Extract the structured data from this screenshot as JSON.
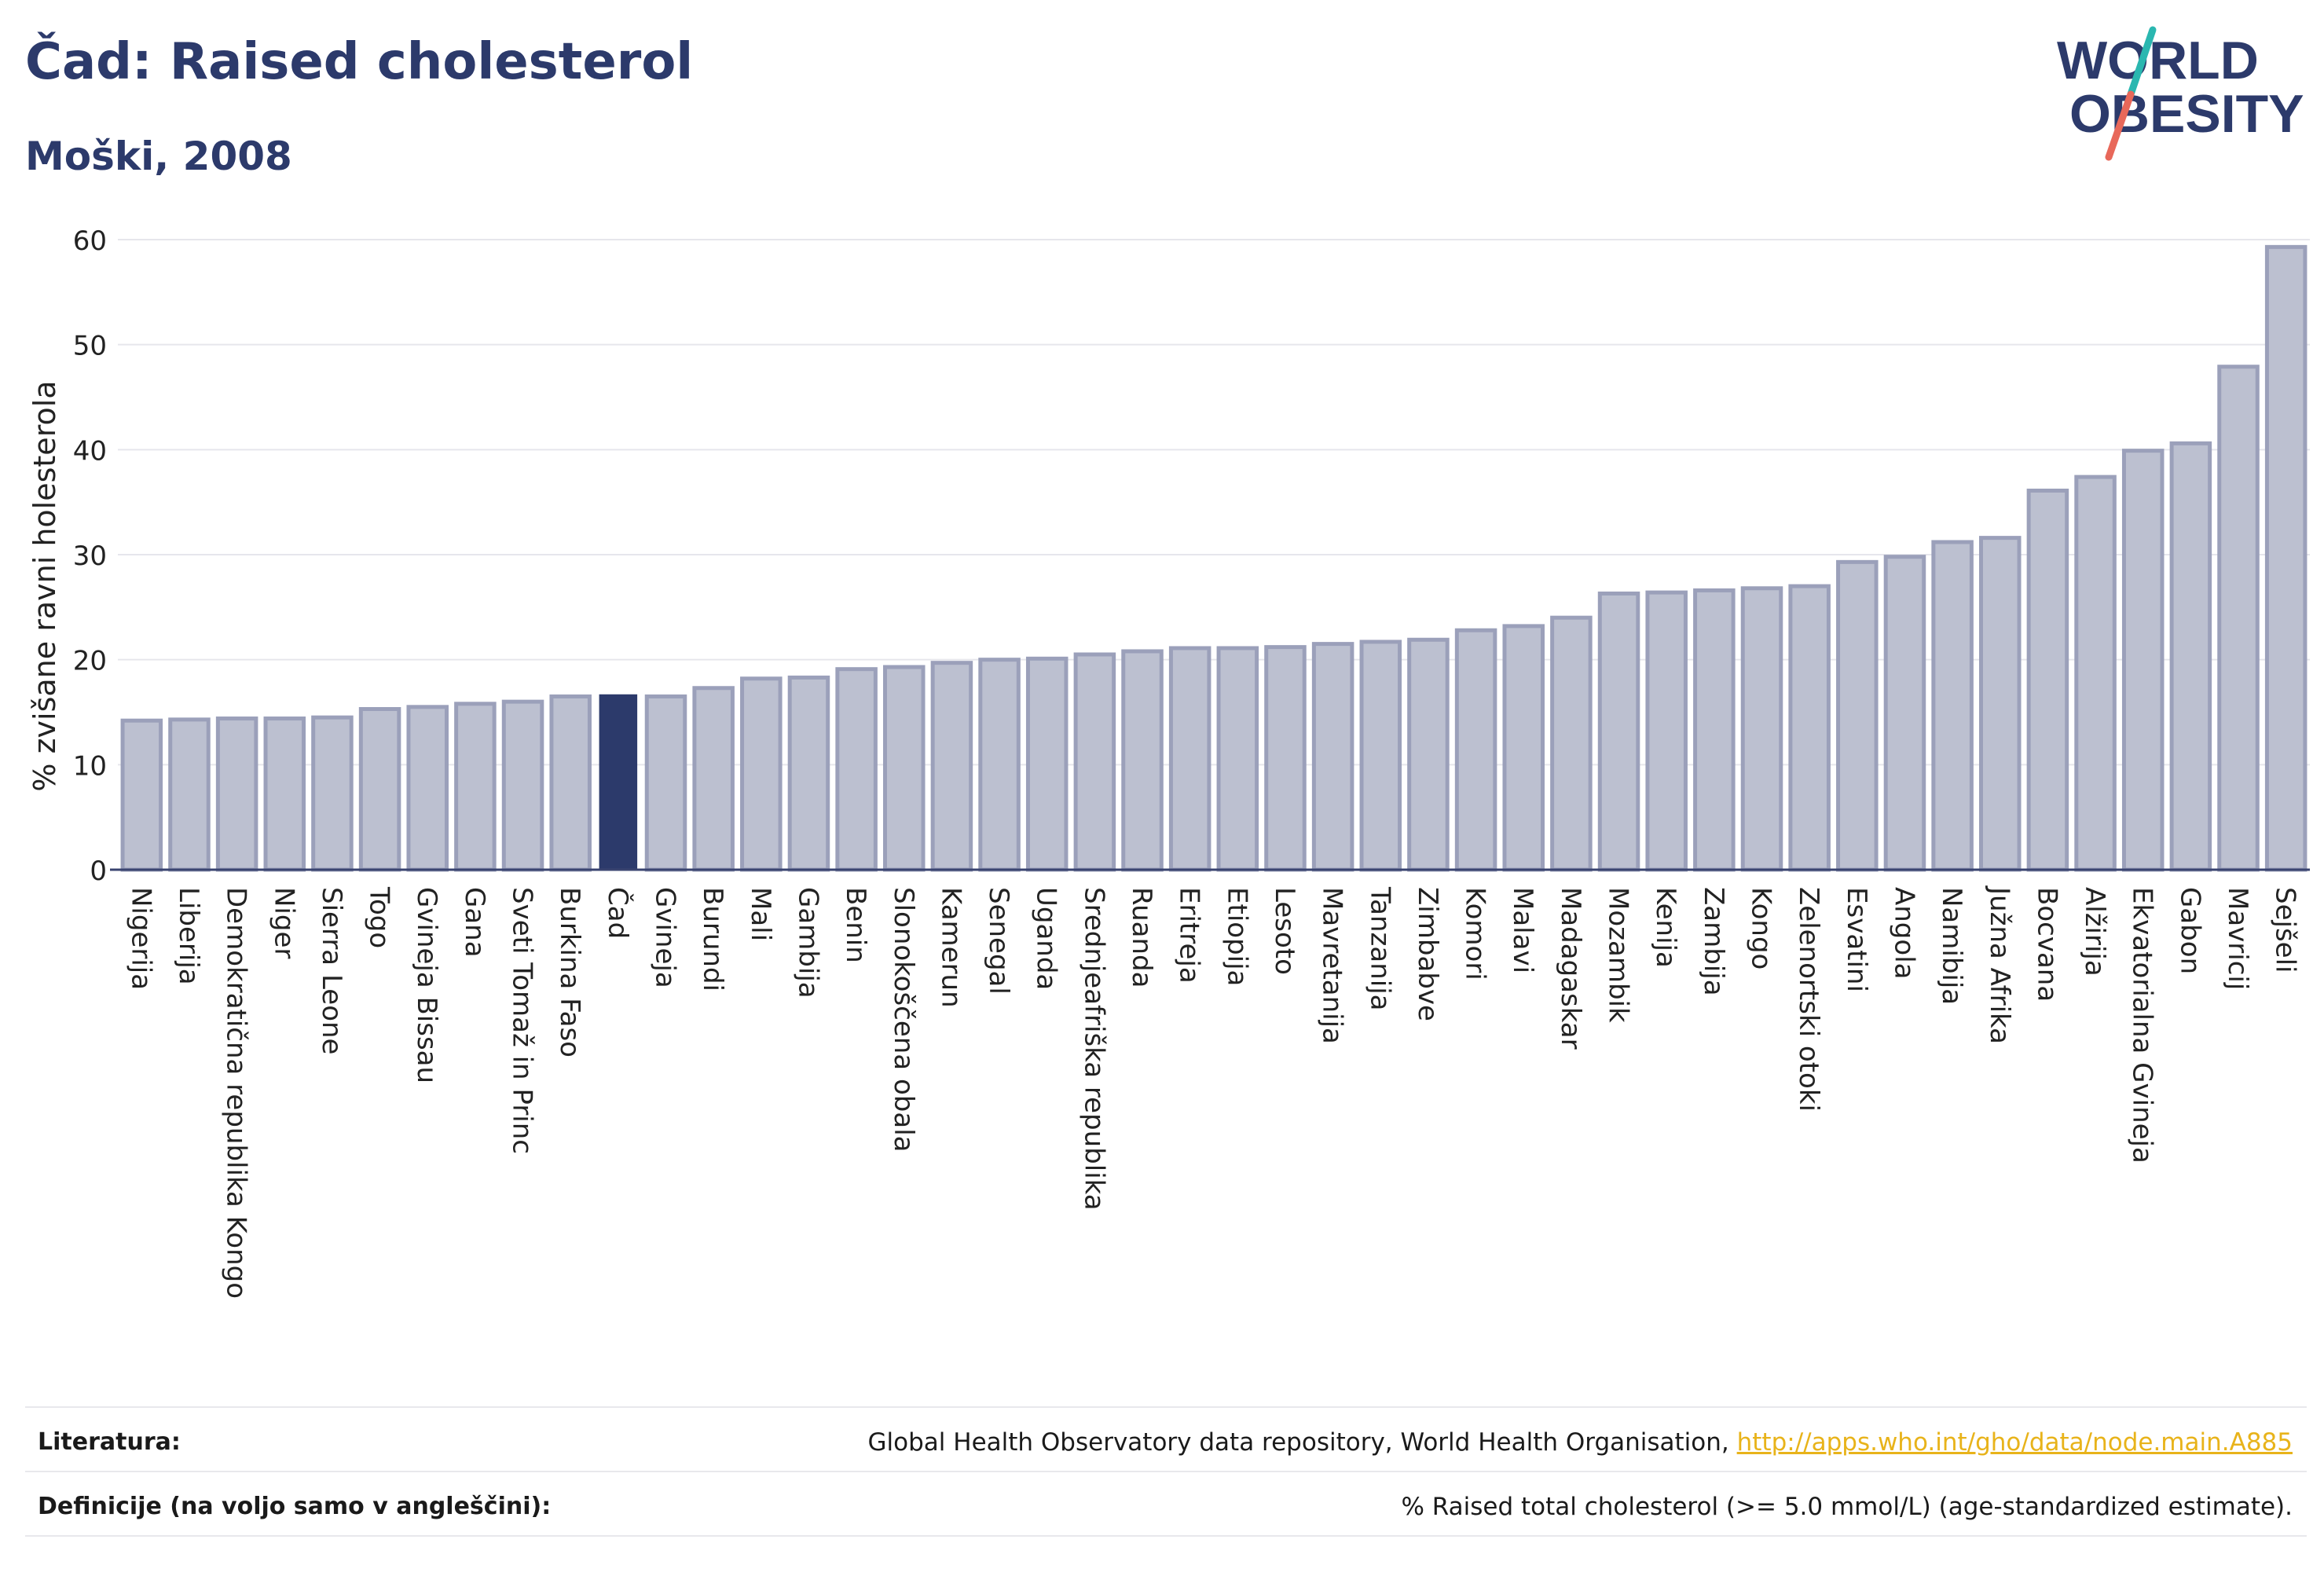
{
  "header": {
    "title": "Čad: Raised cholesterol",
    "subtitle": "Moški, 2008"
  },
  "logo": {
    "line1": "WORLD",
    "line2": "OBESITY"
  },
  "colors": {
    "bar": "#bcc0d0",
    "bar_border": "#9ba0ba",
    "highlight": "#2c3a6b",
    "text": "#2c3a6b",
    "link": "#e8b31a",
    "logo_teal": "#2ab7b0",
    "logo_red": "#e8685a"
  },
  "chart_data": {
    "type": "bar",
    "title": "Čad: Raised cholesterol",
    "subtitle": "Moški, 2008",
    "xlabel": "",
    "ylabel": "% zvišane ravni holesterola",
    "ylim": [
      0,
      60
    ],
    "yticks": [
      0,
      10,
      20,
      30,
      40,
      50,
      60
    ],
    "grid": true,
    "highlight": "Čad",
    "categories": [
      "Nigerija",
      "Liberija",
      "Demokratična republika Kongo",
      "Niger",
      "Sierra Leone",
      "Togo",
      "Gvineja Bissau",
      "Gana",
      "Sveti Tomaž in Princ",
      "Burkina Faso",
      "Čad",
      "Gvineja",
      "Burundi",
      "Mali",
      "Gambija",
      "Benin",
      "Slonokoščena obala",
      "Kamerun",
      "Senegal",
      "Uganda",
      "Srednjeafriška republika",
      "Ruanda",
      "Eritreja",
      "Etiopija",
      "Lesoto",
      "Mavretanija",
      "Tanzanija",
      "Zimbabve",
      "Komori",
      "Malavi",
      "Madagaskar",
      "Mozambik",
      "Kenija",
      "Zambija",
      "Kongo",
      "Zelenortski otoki",
      "Esvatini",
      "Angola",
      "Namibija",
      "Južna Afrika",
      "Bocvana",
      "Alžirija",
      "Ekvatorialna Gvineja",
      "Gabon",
      "Mavricij",
      "Sejšeli"
    ],
    "values": [
      14.2,
      14.3,
      14.4,
      14.4,
      14.5,
      15.3,
      15.5,
      15.8,
      16.0,
      16.5,
      16.7,
      16.5,
      17.3,
      18.2,
      18.3,
      19.1,
      19.3,
      19.7,
      20.0,
      20.1,
      20.5,
      20.8,
      21.1,
      21.1,
      21.2,
      21.5,
      21.7,
      21.9,
      22.8,
      23.2,
      24.0,
      26.3,
      26.4,
      26.6,
      26.8,
      27.0,
      29.3,
      29.8,
      31.2,
      31.6,
      36.1,
      37.4,
      39.9,
      40.6,
      47.9,
      59.3
    ]
  },
  "footer": {
    "literature_label": "Literatura:",
    "literature_text": "Global Health Observatory data repository, World Health Organisation,",
    "literature_link": "http://apps.who.int/gho/data/node.main.A885",
    "definition_label": "Definicije (na voljo samo v angleščini):",
    "definition_text": "% Raised total cholesterol (>= 5.0 mmol/L) (age-standardized estimate)."
  }
}
